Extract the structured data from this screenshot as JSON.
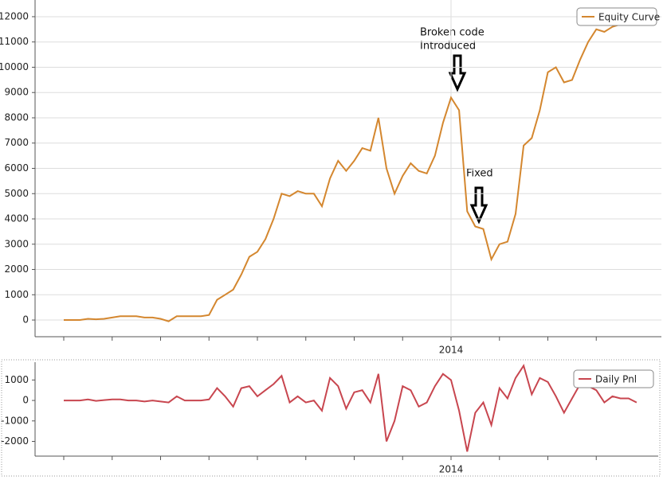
{
  "chart_data": [
    {
      "type": "line",
      "grid": true,
      "legend": "top-right",
      "annotations": [
        "Broken code",
        "Introduced",
        "Fixed"
      ],
      "categories": [
        null,
        null,
        null,
        null,
        null,
        null,
        null,
        null,
        null,
        null,
        null,
        null,
        null,
        null,
        null,
        null,
        null,
        null,
        null,
        null,
        null,
        null,
        null,
        null,
        null,
        null,
        null,
        null,
        null,
        null,
        null,
        null,
        null,
        null,
        null,
        null,
        null,
        null,
        null,
        null,
        null,
        null,
        null,
        null,
        null,
        null,
        null,
        null,
        "2014",
        null,
        null,
        null,
        null,
        null,
        null,
        null,
        null,
        null,
        null,
        null,
        null,
        null,
        null,
        null,
        null,
        null,
        null,
        null,
        null,
        null,
        null,
        null
      ],
      "series": [
        {
          "name": "Equity Curve",
          "color": "#d4872f",
          "values": [
            0,
            0,
            0,
            50,
            30,
            50,
            100,
            150,
            150,
            150,
            100,
            100,
            50,
            -50,
            150,
            150,
            150,
            150,
            200,
            800,
            1000,
            1200,
            1800,
            2500,
            2700,
            3200,
            4000,
            5000,
            4900,
            5100,
            5000,
            5000,
            4500,
            5600,
            6300,
            5900,
            6300,
            6800,
            6700,
            8000,
            6000,
            5000,
            5700,
            6200,
            5900,
            5800,
            6500,
            7800,
            8800,
            8300,
            4300,
            3700,
            3600,
            2400,
            3000,
            3100,
            4200,
            6900,
            7200,
            8300,
            9800,
            10000,
            9400,
            9500,
            10300,
            11000,
            11500,
            11400,
            11600,
            11700,
            11800,
            11700
          ]
        }
      ],
      "ylim": [
        -660,
        12660
      ],
      "yticks": [
        0,
        1000,
        2000,
        3000,
        4000,
        5000,
        6000,
        7000,
        8000,
        9000,
        10000,
        11000,
        12000
      ]
    },
    {
      "type": "line",
      "grid": false,
      "legend": "top-right",
      "categories": [
        null,
        null,
        null,
        null,
        null,
        null,
        null,
        null,
        null,
        null,
        null,
        null,
        null,
        null,
        null,
        null,
        null,
        null,
        null,
        null,
        null,
        null,
        null,
        null,
        null,
        null,
        null,
        null,
        null,
        null,
        null,
        null,
        null,
        null,
        null,
        null,
        null,
        null,
        null,
        null,
        null,
        null,
        null,
        null,
        null,
        null,
        null,
        null,
        "2014",
        null,
        null,
        null,
        null,
        null,
        null,
        null,
        null,
        null,
        null,
        null,
        null,
        null,
        null,
        null,
        null,
        null,
        null,
        null,
        null,
        null,
        null,
        null
      ],
      "series": [
        {
          "name": "Daily Pnl",
          "color": "#c8464f",
          "values": [
            0,
            0,
            0,
            50,
            -20,
            20,
            50,
            50,
            0,
            0,
            -50,
            0,
            -50,
            -100,
            200,
            0,
            0,
            0,
            50,
            600,
            200,
            -300,
            600,
            700,
            200,
            500,
            800,
            1200,
            -100,
            200,
            -100,
            0,
            -500,
            1100,
            700,
            -400,
            400,
            500,
            -100,
            1300,
            -2000,
            -1000,
            700,
            500,
            -300,
            -100,
            700,
            1300,
            1000,
            -500,
            -2500,
            -600,
            -100,
            -1200,
            600,
            100,
            1100,
            1700,
            300,
            1100,
            900,
            200,
            -600,
            100,
            800,
            700,
            500,
            -100,
            200,
            100,
            100,
            -100
          ]
        }
      ],
      "ylim": [
        -2720,
        1870
      ],
      "yticks": [
        -2000,
        -1000,
        0,
        1000
      ]
    }
  ]
}
